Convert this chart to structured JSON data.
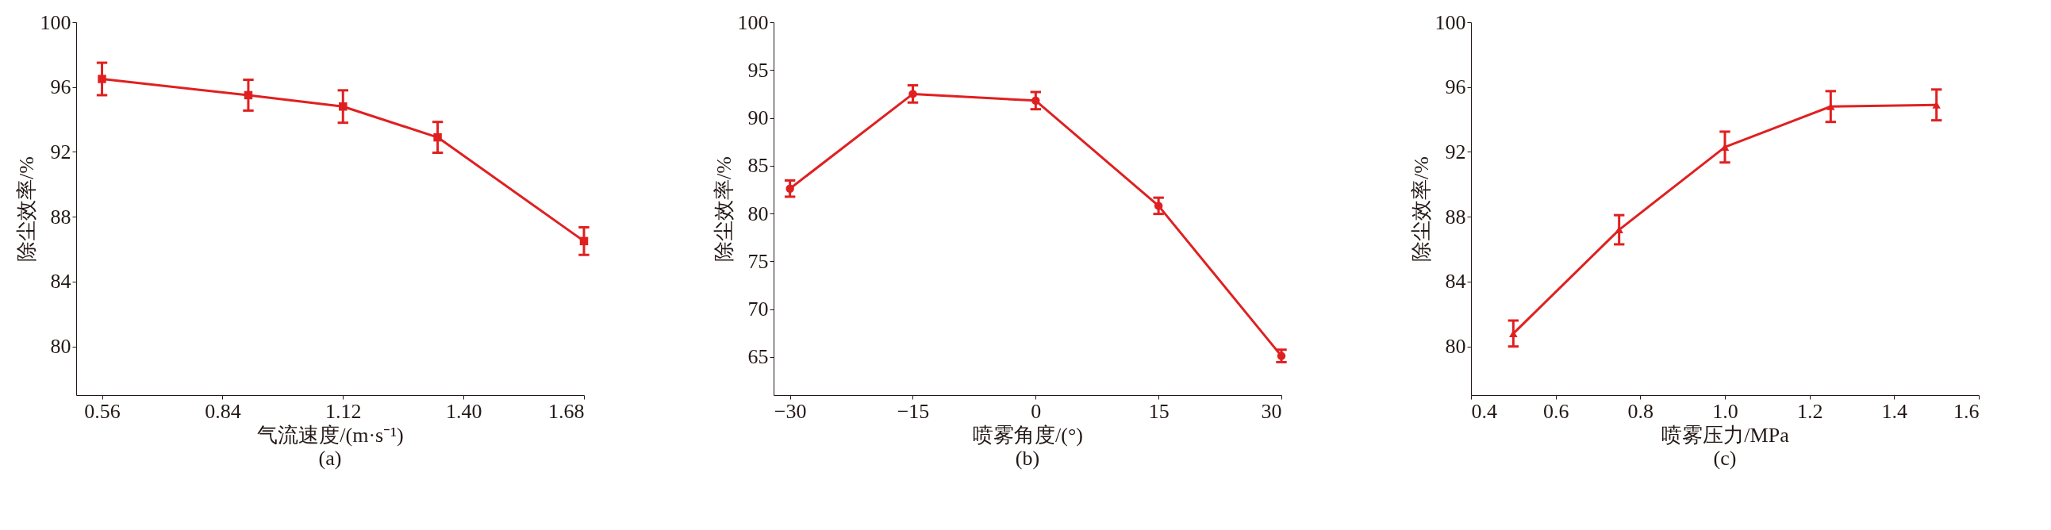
{
  "chart_data": [
    {
      "type": "line",
      "xlabel": "气流速度/(m·s⁻¹)",
      "ylabel": "除尘效率/%",
      "annotations": [
        "(a)"
      ],
      "x": [
        0.56,
        0.9,
        1.12,
        1.34,
        1.68
      ],
      "series": [
        {
          "color": "#e02020",
          "values": [
            96.5,
            95.5,
            94.8,
            92.9,
            86.5
          ],
          "errors": [
            1.0,
            0.95,
            1.0,
            0.95,
            0.85
          ]
        }
      ],
      "marker": "square",
      "grid": false,
      "xlim": [
        0.5,
        1.68
      ],
      "xticks": [
        0.56,
        0.84,
        1.12,
        {
          "value": 1.4,
          "label": "1.40"
        },
        1.68
      ],
      "ylim": [
        77,
        100
      ],
      "yticks": [
        80,
        84,
        88,
        92,
        96,
        100
      ]
    },
    {
      "type": "line",
      "xlabel": "喷雾角度/(°)",
      "ylabel": "除尘效率/%",
      "annotations": [
        "(b)"
      ],
      "x": [
        -30,
        -15,
        0,
        15,
        30
      ],
      "series": [
        {
          "color": "#e02020",
          "values": [
            82.6,
            92.5,
            91.8,
            80.8,
            65.1
          ],
          "errors": [
            0.85,
            0.9,
            0.9,
            0.85,
            0.65
          ]
        }
      ],
      "marker": "circle",
      "grid": false,
      "xlim": [
        -32,
        30
      ],
      "xticks": [
        {
          "value": -30,
          "label": "−30"
        },
        {
          "value": -15,
          "label": "−15"
        },
        0,
        15,
        30
      ],
      "ylim": [
        61,
        100
      ],
      "yticks": [
        65,
        70,
        75,
        80,
        85,
        90,
        95,
        100
      ]
    },
    {
      "type": "line",
      "xlabel": "喷雾压力/MPa",
      "ylabel": "除尘效率/%",
      "annotations": [
        "(c)"
      ],
      "x": [
        0.5,
        0.75,
        1.0,
        1.25,
        1.5
      ],
      "series": [
        {
          "color": "#e02020",
          "values": [
            80.8,
            87.2,
            92.3,
            94.8,
            94.9
          ],
          "errors": [
            0.8,
            0.9,
            0.95,
            0.95,
            0.95
          ]
        }
      ],
      "marker": "triangle",
      "grid": false,
      "xlim": [
        0.4,
        1.6
      ],
      "xticks": [
        0.4,
        0.6,
        0.8,
        {
          "value": 1.0,
          "label": "1.0"
        },
        1.2,
        1.4,
        1.6
      ],
      "ylim": [
        77,
        100
      ],
      "yticks": [
        80,
        84,
        88,
        92,
        96,
        100
      ]
    }
  ]
}
